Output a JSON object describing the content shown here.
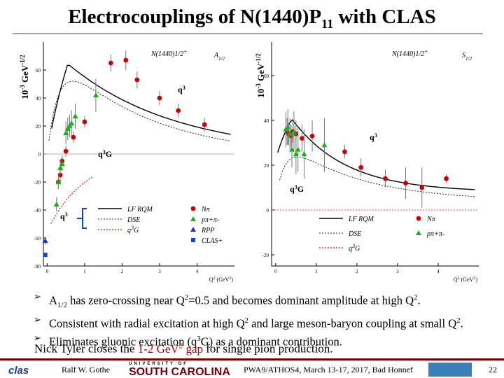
{
  "title_main": "Electrocouplings of N(1440)P",
  "title_sub": "11",
  "title_end": " with CLAS",
  "ylabel_left": "10-3 GeV-1/2",
  "ylabel_right": "10-3 GeV-1/2",
  "bullets": [
    "A1/2 has zero-crossing near Q2=0.5 and becomes dominant amplitude at high Q2.",
    "Consistent with radial excitation at high Q2 and large meson-baryon coupling at small Q2.",
    "Eliminates gluonic excitation (q3G) as a dominant contribution."
  ],
  "note_prefix": "Nick Tyler closes the ",
  "note_highlight": "1-2 GeV2 gap",
  "note_suffix": " for single pion production.",
  "footer": {
    "author": "Ralf W. Gothe",
    "conference": "PWA9/ATHOS4, March 13-17, 2017, Bad Honnef",
    "page": "22",
    "logo_left": "clas",
    "logo_mid_top": "UNIVERSITY OF",
    "logo_mid": "SOUTH CAROLINA"
  },
  "colors": {
    "npi": "#cc0000",
    "ppipi": "#22aa22",
    "rpp": "#2233bb",
    "clas": "#1144cc",
    "q3g": "#d01010"
  },
  "chart_data": [
    {
      "type": "scatter",
      "panel_title": "N(1440)1/2+",
      "amplitude": "A1/2",
      "xlabel": "Q2 (GeV2)",
      "xlim": [
        -0.1,
        5
      ],
      "ylim": [
        -80,
        80
      ],
      "xticks": [
        0,
        1,
        2,
        3,
        4
      ],
      "yticks": [
        -80,
        -60,
        -40,
        -20,
        0,
        20,
        40,
        60
      ],
      "series": [
        {
          "name": "Nπ",
          "marker": "circle",
          "points": [
            [
              0.3,
              -20
            ],
            [
              0.35,
              -15
            ],
            [
              0.4,
              -5
            ],
            [
              0.5,
              2
            ],
            [
              0.7,
              12
            ],
            [
              1.0,
              23
            ],
            [
              1.7,
              65
            ],
            [
              2.1,
              67
            ],
            [
              2.4,
              53
            ],
            [
              3.0,
              40
            ],
            [
              3.5,
              31
            ],
            [
              4.2,
              21
            ]
          ],
          "err": [
            5,
            5,
            4,
            4,
            4,
            4,
            6,
            7,
            6,
            5,
            5,
            5
          ]
        },
        {
          "name": "pπ+π-",
          "marker": "triangle",
          "points": [
            [
              0.25,
              -36
            ],
            [
              0.3,
              -20
            ],
            [
              0.35,
              -10
            ],
            [
              0.4,
              -7
            ],
            [
              0.5,
              15
            ],
            [
              0.55,
              18
            ],
            [
              0.6,
              20
            ],
            [
              0.65,
              22
            ],
            [
              0.75,
              27
            ],
            [
              1.3,
              42
            ]
          ],
          "err": [
            5,
            5,
            5,
            5,
            8,
            8,
            8,
            9,
            9,
            12
          ]
        },
        {
          "name": "RPP",
          "marker": "triangle",
          "points": [
            [
              -0.05,
              -62
            ]
          ],
          "err": [
            3
          ]
        },
        {
          "name": "CLAS+",
          "marker": "square",
          "points": [
            [
              -0.05,
              -72
            ]
          ],
          "err": [
            0
          ]
        }
      ],
      "curves": [
        {
          "name": "LF RQM",
          "style": "solid"
        },
        {
          "name": "DSE",
          "style": "dotted"
        },
        {
          "name": "q3G",
          "style": "red-dotted"
        }
      ],
      "annotations": [
        "q3",
        "q3G",
        "q3"
      ]
    },
    {
      "type": "scatter",
      "panel_title": "N(1440)1/2+",
      "amplitude": "S1/2",
      "xlabel": "Q2 (GeV2)",
      "xlim": [
        -0.1,
        5
      ],
      "ylim": [
        -25,
        75
      ],
      "xticks": [
        0,
        1,
        2,
        3,
        4
      ],
      "yticks": [
        -20,
        0,
        20,
        40,
        60
      ],
      "series": [
        {
          "name": "Nπ",
          "marker": "circle",
          "points": [
            [
              0.28,
              35
            ],
            [
              0.32,
              34
            ],
            [
              0.38,
              33
            ],
            [
              0.42,
              35
            ],
            [
              0.5,
              34
            ],
            [
              0.65,
              32
            ],
            [
              0.9,
              33
            ],
            [
              1.7,
              26
            ],
            [
              2.1,
              19
            ],
            [
              2.7,
              14
            ],
            [
              3.2,
              12
            ],
            [
              3.6,
              10
            ],
            [
              4.2,
              14
            ]
          ],
          "err": [
            6,
            5,
            5,
            5,
            6,
            6,
            7,
            3,
            4,
            4,
            7,
            9,
            2
          ]
        },
        {
          "name": "pπ+π-",
          "marker": "triangle",
          "points": [
            [
              0.25,
              36
            ],
            [
              0.3,
              37
            ],
            [
              0.35,
              34
            ],
            [
              0.4,
              27
            ],
            [
              0.45,
              35
            ],
            [
              0.5,
              25
            ],
            [
              0.55,
              27
            ],
            [
              0.7,
              25
            ],
            [
              1.2,
              29
            ]
          ],
          "err": [
            8,
            8,
            7,
            8,
            9,
            9,
            10,
            11,
            12
          ]
        }
      ],
      "curves": [
        {
          "name": "LF RQM",
          "style": "solid"
        },
        {
          "name": "DSE",
          "style": "dotted"
        },
        {
          "name": "q3G",
          "style": "red-dotted"
        }
      ],
      "annotations": [
        "q3",
        "q3G"
      ]
    }
  ]
}
